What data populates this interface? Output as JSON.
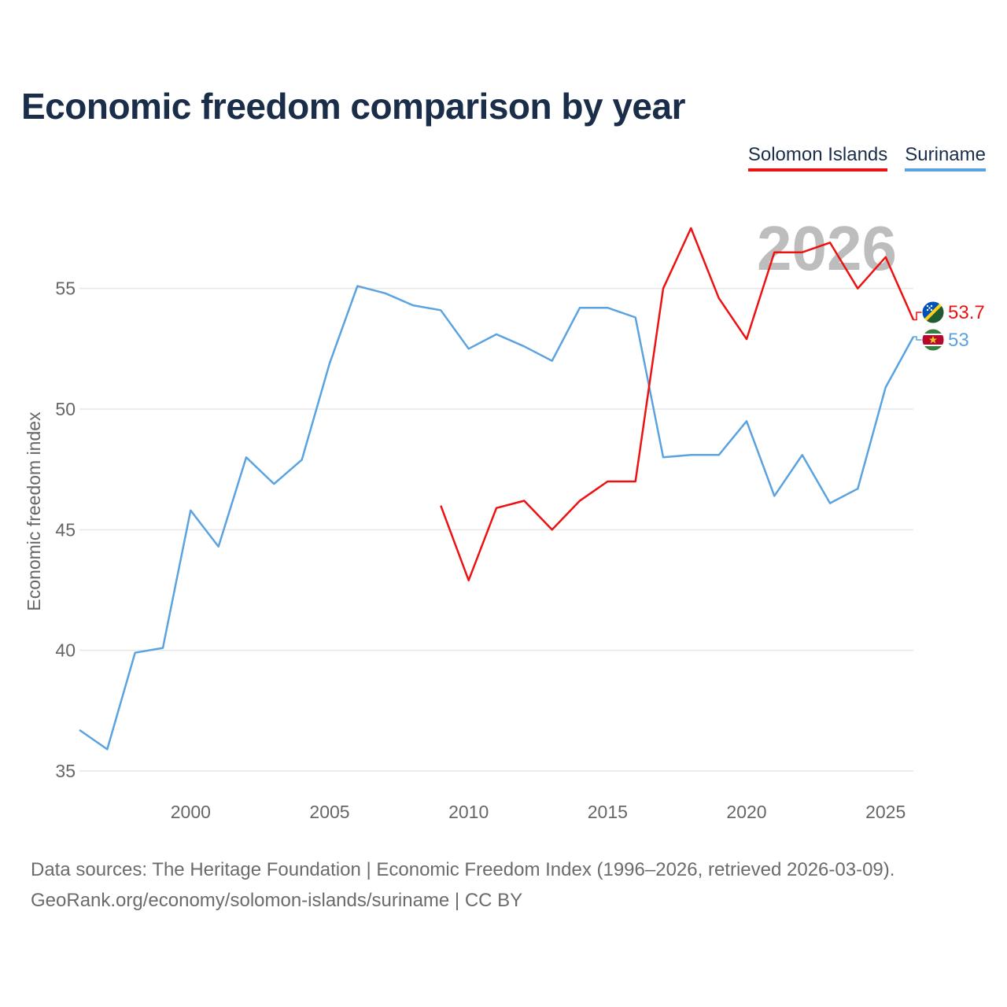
{
  "chart_data": {
    "type": "line",
    "title": "Economic freedom comparison by year",
    "ylabel": "Economic freedom index",
    "xlabel": "",
    "xlim": [
      1996,
      2026
    ],
    "ylim": [
      35,
      58.5
    ],
    "yticks": [
      35,
      40,
      45,
      50,
      55
    ],
    "xticks": [
      2000,
      2005,
      2010,
      2015,
      2020,
      2025
    ],
    "watermark": "2026",
    "series": [
      {
        "name": "Solomon Islands",
        "color": "#ee1111",
        "end_label": "53.7",
        "flag": "solomon-islands-flag",
        "x": [
          2009,
          2010,
          2011,
          2012,
          2013,
          2014,
          2015,
          2016,
          2017,
          2018,
          2019,
          2020,
          2021,
          2022,
          2023,
          2024,
          2025,
          2026
        ],
        "values": [
          46.0,
          42.9,
          45.9,
          46.2,
          45.0,
          46.2,
          47.0,
          47.0,
          55.0,
          57.5,
          54.6,
          52.9,
          56.5,
          56.5,
          56.9,
          55.0,
          56.3,
          53.7
        ]
      },
      {
        "name": "Suriname",
        "color": "#5aa3e0",
        "end_label": "53",
        "flag": "suriname-flag",
        "x": [
          1996,
          1997,
          1998,
          1999,
          2000,
          2001,
          2002,
          2003,
          2004,
          2005,
          2006,
          2007,
          2008,
          2009,
          2010,
          2011,
          2012,
          2013,
          2014,
          2015,
          2016,
          2017,
          2018,
          2019,
          2020,
          2021,
          2022,
          2023,
          2024,
          2025,
          2026
        ],
        "values": [
          36.7,
          35.9,
          39.9,
          40.1,
          45.8,
          44.3,
          48.0,
          46.9,
          47.9,
          51.9,
          55.1,
          54.8,
          54.3,
          54.1,
          52.5,
          53.1,
          52.6,
          52.0,
          54.2,
          54.2,
          53.8,
          48.0,
          48.1,
          48.1,
          49.5,
          46.4,
          48.1,
          46.1,
          46.7,
          50.9,
          53.0
        ]
      }
    ]
  },
  "source": {
    "line1": "Data sources: The Heritage Foundation | Economic Freedom Index (1996–2026, retrieved 2026-03-09).",
    "line2": "GeoRank.org/economy/solomon-islands/suriname | CC BY"
  }
}
